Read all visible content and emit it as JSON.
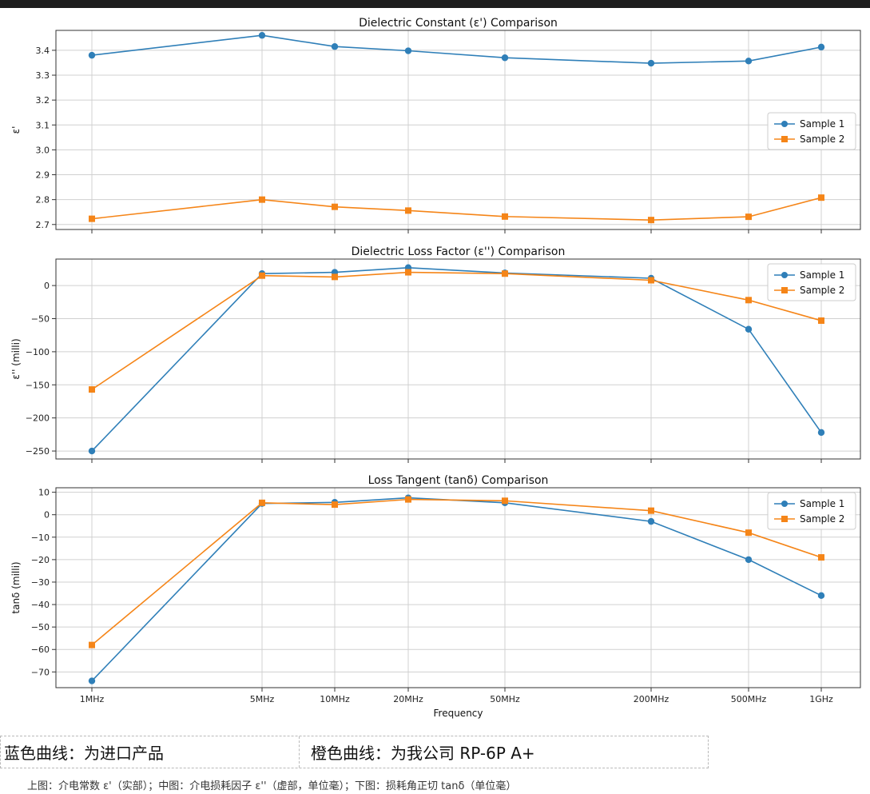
{
  "chart_data": [
    {
      "type": "line",
      "title": "Dielectric Constant (ε') Comparison",
      "xlabel": "",
      "ylabel": "ε'",
      "x": [
        "1MHz",
        "5MHz",
        "10MHz",
        "20MHz",
        "50MHz",
        "200MHz",
        "500MHz",
        "1GHz"
      ],
      "ylim": [
        2.68,
        3.48
      ],
      "yticks": [
        2.7,
        2.8,
        2.9,
        3.0,
        3.1,
        3.2,
        3.3,
        3.4
      ],
      "ytick_labels": [
        "2.7",
        "2.8",
        "2.9",
        "3.0",
        "3.1",
        "3.2",
        "3.3",
        "3.4"
      ],
      "grid": true,
      "legend": "center-right",
      "series": [
        {
          "name": "Sample 1",
          "marker": "circle",
          "color": "#2f7fb8",
          "values": [
            3.38,
            3.46,
            3.415,
            3.398,
            3.37,
            3.348,
            3.357,
            3.413
          ]
        },
        {
          "name": "Sample 2",
          "marker": "square",
          "color": "#f58518",
          "values": [
            2.723,
            2.8,
            2.771,
            2.756,
            2.732,
            2.718,
            2.731,
            2.808
          ]
        }
      ]
    },
    {
      "type": "line",
      "title": "Dielectric Loss Factor (ε'') Comparison",
      "xlabel": "",
      "ylabel": "ε'' (milli)",
      "x": [
        "1MHz",
        "5MHz",
        "10MHz",
        "20MHz",
        "50MHz",
        "200MHz",
        "500MHz",
        "1GHz"
      ],
      "ylim": [
        -262,
        40
      ],
      "yticks": [
        -250,
        -200,
        -150,
        -100,
        -50,
        0
      ],
      "ytick_labels": [
        "−250",
        "−200",
        "−150",
        "−100",
        "−50",
        "0"
      ],
      "grid": true,
      "legend": "top-right",
      "series": [
        {
          "name": "Sample 1",
          "marker": "circle",
          "color": "#2f7fb8",
          "values": [
            -250,
            18,
            20,
            27,
            19,
            11,
            -66,
            -222
          ]
        },
        {
          "name": "Sample 2",
          "marker": "square",
          "color": "#f58518",
          "values": [
            -157,
            15,
            13,
            20,
            18,
            8,
            -22,
            -53
          ]
        }
      ]
    },
    {
      "type": "line",
      "title": "Loss Tangent (tanδ) Comparison",
      "xlabel": "Frequency",
      "ylabel": "tanδ (milli)",
      "x": [
        "1MHz",
        "5MHz",
        "10MHz",
        "20MHz",
        "50MHz",
        "200MHz",
        "500MHz",
        "1GHz"
      ],
      "ylim": [
        -77,
        12
      ],
      "yticks": [
        -70,
        -60,
        -50,
        -40,
        -30,
        -20,
        -10,
        0,
        10
      ],
      "ytick_labels": [
        "−70",
        "−60",
        "−50",
        "−40",
        "−30",
        "−20",
        "−10",
        "0",
        "10"
      ],
      "grid": true,
      "legend": "top-right",
      "series": [
        {
          "name": "Sample 1",
          "marker": "circle",
          "color": "#2f7fb8",
          "values": [
            -74,
            5,
            5.5,
            7.5,
            5.3,
            -3,
            -20,
            -36
          ]
        },
        {
          "name": "Sample 2",
          "marker": "square",
          "color": "#f58518",
          "values": [
            -58,
            5.3,
            4.5,
            6.8,
            6.2,
            1.8,
            -8,
            -19
          ]
        }
      ]
    }
  ],
  "captions": {
    "left": "蓝色曲线：为进口产品",
    "right": "橙色曲线：为我公司 RP-6P A+",
    "note": "上图：介电常数 ε'（实部）；中图：介电损耗因子 ε''（虚部，单位毫）；下图：损耗角正切 tanδ（单位毫）"
  }
}
